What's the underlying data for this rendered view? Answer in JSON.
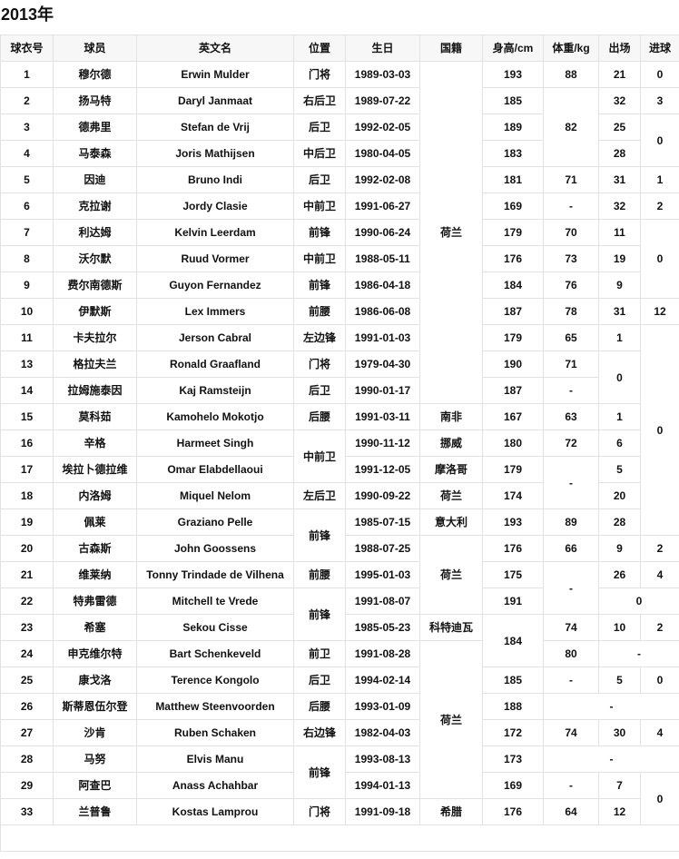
{
  "title": "2013年",
  "headers": [
    "球衣号",
    "球员",
    "英文名",
    "位置",
    "生日",
    "国籍",
    "身高/cm",
    "体重/kg",
    "出场",
    "进球"
  ],
  "rows": [
    [
      "1",
      "穆尔德",
      "Erwin Mulder",
      "门将",
      "1989-03-03",
      {
        "v": "荷兰",
        "rowspan": 13
      },
      "193",
      "88",
      "21",
      "0"
    ],
    [
      "2",
      "扬马特",
      "Daryl Janmaat",
      "右后卫",
      "1989-07-22",
      "185",
      {
        "v": "82",
        "rowspan": 3
      },
      "32",
      "3"
    ],
    [
      "3",
      "德弗里",
      "Stefan de Vrij",
      "后卫",
      "1992-02-05",
      "189",
      "25",
      {
        "v": "0",
        "rowspan": 2
      }
    ],
    [
      "4",
      "马泰森",
      "Joris Mathijsen",
      "中后卫",
      "1980-04-05",
      "183",
      "28"
    ],
    [
      "5",
      "因迪",
      "Bruno Indi",
      "后卫",
      "1992-02-08",
      "181",
      "71",
      "31",
      "1"
    ],
    [
      "6",
      "克拉谢",
      "Jordy Clasie",
      "中前卫",
      "1991-06-27",
      "169",
      "-",
      "32",
      "2"
    ],
    [
      "7",
      "利达姆",
      "Kelvin Leerdam",
      "前锋",
      "1990-06-24",
      "179",
      "70",
      "11",
      {
        "v": "0",
        "rowspan": 3
      }
    ],
    [
      "8",
      "沃尔默",
      "Ruud Vormer",
      "中前卫",
      "1988-05-11",
      "176",
      "73",
      "19"
    ],
    [
      "9",
      "费尔南德斯",
      "Guyon Fernandez",
      "前锋",
      "1986-04-18",
      "184",
      "76",
      "9"
    ],
    [
      "10",
      "伊默斯",
      "Lex Immers",
      "前腰",
      "1986-06-08",
      "187",
      "78",
      "31",
      "12"
    ],
    [
      "11",
      "卡夫拉尔",
      "Jerson Cabral",
      "左边锋",
      "1991-01-03",
      "179",
      "65",
      "1",
      {
        "v": "0",
        "rowspan": 8
      }
    ],
    [
      "13",
      "格拉夫兰",
      "Ronald Graafland",
      "门将",
      "1979-04-30",
      "190",
      "71",
      {
        "v": "0",
        "rowspan": 2
      }
    ],
    [
      "14",
      "拉姆施泰因",
      "Kaj Ramsteijn",
      "后卫",
      "1990-01-17",
      "187",
      "-"
    ],
    [
      "15",
      "莫科茹",
      "Kamohelo Mokotjo",
      "后腰",
      "1991-03-11",
      "南非",
      "167",
      "63",
      "1"
    ],
    [
      "16",
      "辛格",
      "Harmeet Singh",
      {
        "v": "中前卫",
        "rowspan": 2
      },
      "1990-11-12",
      "挪威",
      "180",
      "72",
      "6"
    ],
    [
      "17",
      "埃拉卜德拉维",
      "Omar Elabdellaoui",
      "1991-12-05",
      "摩洛哥",
      "179",
      {
        "v": "-",
        "rowspan": 2
      },
      "5"
    ],
    [
      "18",
      "内洛姆",
      "Miquel Nelom",
      "左后卫",
      "1990-09-22",
      "荷兰",
      "174",
      "20"
    ],
    [
      "19",
      "佩莱",
      "Graziano Pelle",
      {
        "v": "前锋",
        "rowspan": 2
      },
      "1985-07-15",
      "意大利",
      "193",
      "89",
      "28",
      "26"
    ],
    [
      "20",
      "古森斯",
      "John Goossens",
      "1988-07-25",
      {
        "v": "荷兰",
        "rowspan": 3
      },
      "176",
      "66",
      "9",
      "2"
    ],
    [
      "21",
      "维莱纳",
      "Tonny Trindade de Vilhena",
      "前腰",
      "1995-01-03",
      "175",
      {
        "v": "-",
        "rowspan": 2
      },
      "26",
      "4"
    ],
    [
      "22",
      "特弗雷德",
      "Mitchell te Vrede",
      {
        "v": "前锋",
        "rowspan": 2
      },
      "1991-08-07",
      "191",
      {
        "v": "0",
        "colspan": 2
      }
    ],
    [
      "23",
      "希塞",
      "Sekou Cisse",
      "1985-05-23",
      "科特迪瓦",
      {
        "v": "184",
        "rowspan": 2
      },
      "74",
      "10",
      "2"
    ],
    [
      "24",
      "申克维尔特",
      "Bart Schenkeveld",
      "前卫",
      "1991-08-28",
      {
        "v": "荷兰",
        "rowspan": 6
      },
      "80",
      {
        "v": "-",
        "colspan": 2
      }
    ],
    [
      "25",
      "康戈洛",
      "Terence Kongolo",
      "后卫",
      "1994-02-14",
      "185",
      "-",
      "5",
      "0"
    ],
    [
      "26",
      "斯蒂恩伍尔登",
      "Matthew Steenvoorden",
      "后腰",
      "1993-01-09",
      "188",
      {
        "v": "-",
        "colspan": 3
      }
    ],
    [
      "27",
      "沙肯",
      "Ruben Schaken",
      "右边锋",
      "1982-04-03",
      "172",
      "74",
      "30",
      "4"
    ],
    [
      "28",
      "马努",
      "Elvis Manu",
      {
        "v": "前锋",
        "rowspan": 2
      },
      "1993-08-13",
      "173",
      {
        "v": "-",
        "colspan": 3
      }
    ],
    [
      "29",
      "阿查巴",
      "Anass Achahbar",
      "1994-01-13",
      "169",
      "-",
      "7",
      {
        "v": "0",
        "rowspan": 2
      }
    ],
    [
      "33",
      "兰普鲁",
      "Kostas Lamprou",
      "门将",
      "1991-09-18",
      "希腊",
      "176",
      "64",
      "12"
    ]
  ]
}
